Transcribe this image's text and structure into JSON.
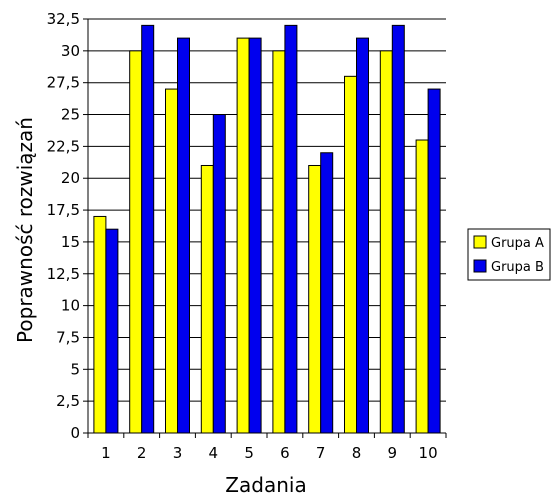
{
  "chart_data": {
    "type": "bar",
    "title": "",
    "xlabel": "Zadania",
    "ylabel": "Poprawność rozwiązań",
    "categories": [
      "1",
      "2",
      "3",
      "4",
      "5",
      "6",
      "7",
      "8",
      "9",
      "10"
    ],
    "series": [
      {
        "name": "Grupa A",
        "color": "#ffff00",
        "values": [
          17,
          30,
          27,
          21,
          31,
          30,
          21,
          28,
          30,
          23
        ]
      },
      {
        "name": "Grupa B",
        "color": "#0000ee",
        "values": [
          16,
          32,
          31,
          25,
          31,
          32,
          22,
          31,
          32,
          27
        ]
      }
    ],
    "ylim": [
      0,
      32.5
    ],
    "yticks": [
      "0",
      "2,5",
      "5",
      "7,5",
      "10",
      "12,5",
      "15",
      "17,5",
      "20",
      "22,5",
      "25",
      "27,5",
      "30",
      "32,5"
    ],
    "grid": true,
    "legend_position": "right"
  }
}
